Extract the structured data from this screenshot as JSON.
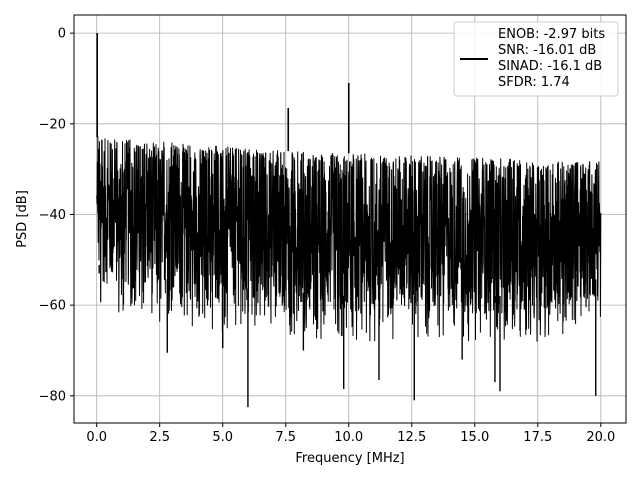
{
  "chart_data": {
    "type": "line",
    "title": "",
    "xlabel": "Frequency [MHz]",
    "ylabel": "PSD [dB]",
    "xlim": [
      -0.9,
      21.0
    ],
    "ylim": [
      -86,
      4
    ],
    "xticks": [
      0.0,
      2.5,
      5.0,
      7.5,
      10.0,
      12.5,
      15.0,
      17.5,
      20.0
    ],
    "xtick_labels": [
      "0.0",
      "2.5",
      "5.0",
      "7.5",
      "10.0",
      "12.5",
      "15.0",
      "17.5",
      "20.0"
    ],
    "yticks": [
      0,
      -20,
      -40,
      -60,
      -80
    ],
    "ytick_labels": [
      "0",
      "−20",
      "−40",
      "−60",
      "−80"
    ],
    "grid": true,
    "legend_position": "top-right",
    "line_color": "#000000",
    "series": [
      {
        "legend_lines": [
          "ENOB: -2.97 bits",
          "SNR: -16.01 dB",
          "SINAD: -16.1 dB",
          "SFDR: 1.74"
        ],
        "noise_band_upper": [
          [
            0.0,
            -23
          ],
          [
            2.5,
            -24
          ],
          [
            5.0,
            -25
          ],
          [
            7.5,
            -26
          ],
          [
            10.0,
            -26.5
          ],
          [
            12.5,
            -27
          ],
          [
            15.0,
            -27.5
          ],
          [
            17.5,
            -28
          ],
          [
            20.0,
            -28
          ]
        ],
        "noise_band_lower": [
          [
            0.0,
            -55
          ],
          [
            2.5,
            -58
          ],
          [
            5.0,
            -60
          ],
          [
            7.5,
            -61
          ],
          [
            10.0,
            -62
          ],
          [
            12.5,
            -62
          ],
          [
            15.0,
            -62
          ],
          [
            17.5,
            -62
          ],
          [
            20.0,
            -58
          ]
        ],
        "peaks": [
          {
            "x": 0.02,
            "y": 0
          },
          {
            "x": 7.6,
            "y": -16.5
          },
          {
            "x": 10.0,
            "y": -11
          }
        ],
        "dips": [
          {
            "x": 0.1,
            "y": -53
          },
          {
            "x": 2.8,
            "y": -70.5
          },
          {
            "x": 5.0,
            "y": -69.5
          },
          {
            "x": 6.0,
            "y": -82.5
          },
          {
            "x": 8.2,
            "y": -70
          },
          {
            "x": 9.8,
            "y": -78.5
          },
          {
            "x": 11.2,
            "y": -76.5
          },
          {
            "x": 12.6,
            "y": -81
          },
          {
            "x": 14.5,
            "y": -72
          },
          {
            "x": 15.8,
            "y": -77
          },
          {
            "x": 16.0,
            "y": -79
          },
          {
            "x": 19.8,
            "y": -80
          }
        ]
      }
    ]
  }
}
